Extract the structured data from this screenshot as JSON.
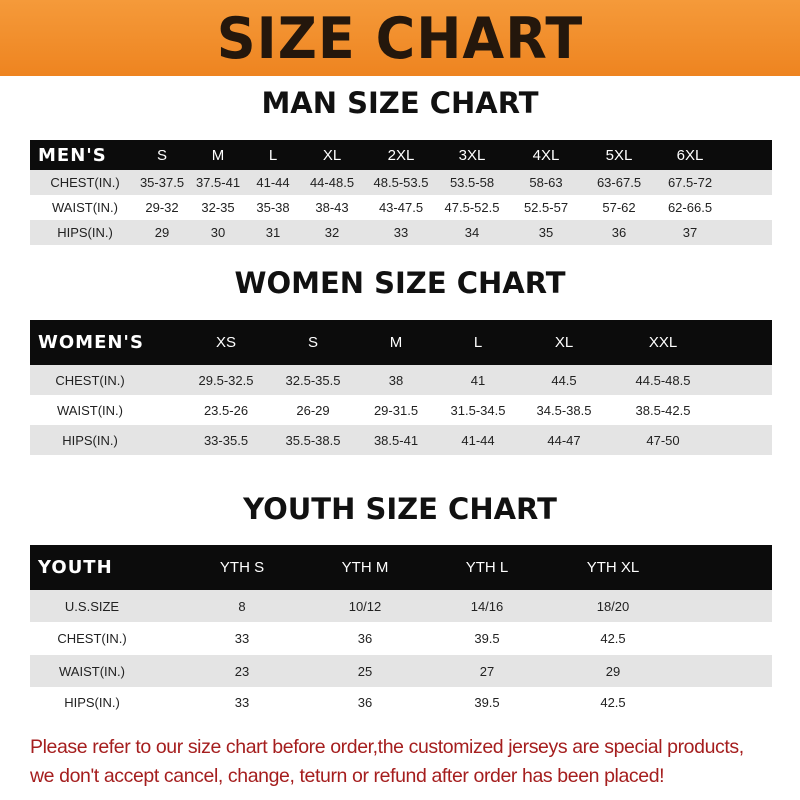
{
  "title": "SIZE CHART",
  "men": {
    "heading": "MAN SIZE CHART",
    "columns": [
      "MEN'S",
      "S",
      "M",
      "L",
      "XL",
      "2XL",
      "3XL",
      "4XL",
      "5XL",
      "6XL"
    ],
    "rows": [
      [
        "CHEST(IN.)",
        "35-37.5",
        "37.5-41",
        "41-44",
        "44-48.5",
        "48.5-53.5",
        "53.5-58",
        "58-63",
        "63-67.5",
        "67.5-72"
      ],
      [
        "WAIST(IN.)",
        "29-32",
        "32-35",
        "35-38",
        "38-43",
        "43-47.5",
        "47.5-52.5",
        "52.5-57",
        "57-62",
        "62-66.5"
      ],
      [
        "HIPS(IN.)",
        "29",
        "30",
        "31",
        "32",
        "33",
        "34",
        "35",
        "36",
        "37"
      ]
    ]
  },
  "women": {
    "heading": "WOMEN SIZE CHART",
    "columns": [
      "WOMEN'S",
      "XS",
      "S",
      "M",
      "L",
      "XL",
      "XXL"
    ],
    "rows": [
      [
        "CHEST(IN.)",
        "29.5-32.5",
        "32.5-35.5",
        "38",
        "41",
        "44.5",
        "44.5-48.5"
      ],
      [
        "WAIST(IN.)",
        "23.5-26",
        "26-29",
        "29-31.5",
        "31.5-34.5",
        "34.5-38.5",
        "38.5-42.5"
      ],
      [
        "HIPS(IN.)",
        "33-35.5",
        "35.5-38.5",
        "38.5-41",
        "41-44",
        "44-47",
        "47-50"
      ]
    ]
  },
  "youth": {
    "heading": "YOUTH SIZE CHART",
    "columns": [
      "YOUTH",
      "YTH S",
      "YTH M",
      "YTH L",
      "YTH XL"
    ],
    "rows": [
      [
        "U.S.SIZE",
        "8",
        "10/12",
        "14/16",
        "18/20"
      ],
      [
        "CHEST(IN.)",
        "33",
        "36",
        "39.5",
        "42.5"
      ],
      [
        "WAIST(IN.)",
        "23",
        "25",
        "27",
        "29"
      ],
      [
        "HIPS(IN.)",
        "33",
        "36",
        "39.5",
        "42.5"
      ]
    ]
  },
  "notice": {
    "line1": "Please refer to our size chart before order,the customized jerseys are special products,",
    "line2": "we don't accept cancel, change, teturn or refund after order has been placed!"
  },
  "colors": {
    "banner": "#ee8420",
    "header_row": "#0c0c0c",
    "stripe": "#e4e4e4",
    "notice": "#a51e1e"
  }
}
